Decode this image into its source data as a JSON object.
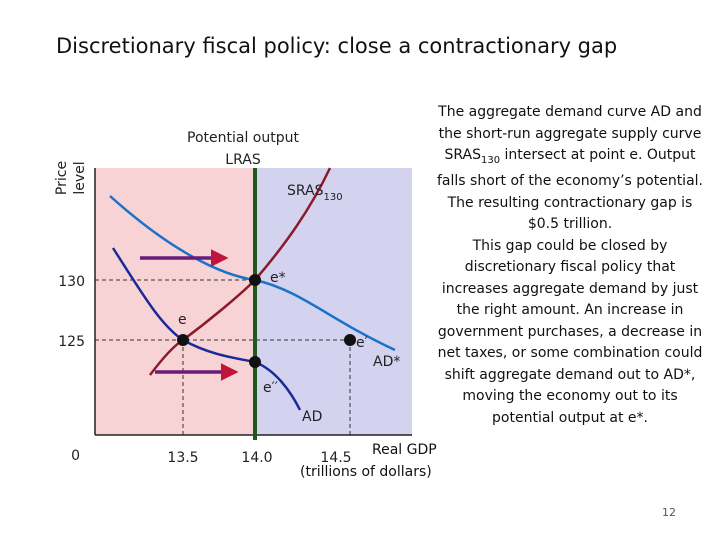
{
  "title": "Discretionary fiscal policy: close a contractionary gap",
  "diagram": {
    "y_axis_label": [
      "Price",
      "level"
    ],
    "lras_label": [
      "Potential output",
      "LRAS"
    ],
    "sras_label": {
      "text": "SRAS",
      "subscript": "130"
    },
    "y_ticks": [
      "130",
      "125",
      "0"
    ],
    "x_ticks": [
      "13.5",
      "14.0",
      "14.5"
    ],
    "x_axis_label": [
      "Real GDP",
      "(trillions of dollars)"
    ],
    "points": [
      "e*",
      "e",
      "e′",
      "e′′"
    ],
    "curves": [
      "AD*",
      "AD"
    ]
  },
  "description": {
    "lines_before": [
      "The aggregate demand curve AD and",
      "the short-run aggregate supply curve"
    ],
    "sras_line": {
      "text": "SRAS",
      "subscript": "130",
      "after": " intersect at point e. Output"
    },
    "lines_after": [
      "falls short of the economy’s potential.",
      "The resulting contractionary gap is",
      "$0.5 trillion.",
      "This gap could be closed by",
      "discretionary fiscal policy that",
      "increases aggregate demand by just",
      "the right amount. An increase in",
      "government purchases, a decrease in",
      "net taxes, or some combination could",
      "shift aggregate demand out to AD*,",
      "moving the economy out to its",
      "potential output at e*."
    ]
  },
  "page_number": "12"
}
